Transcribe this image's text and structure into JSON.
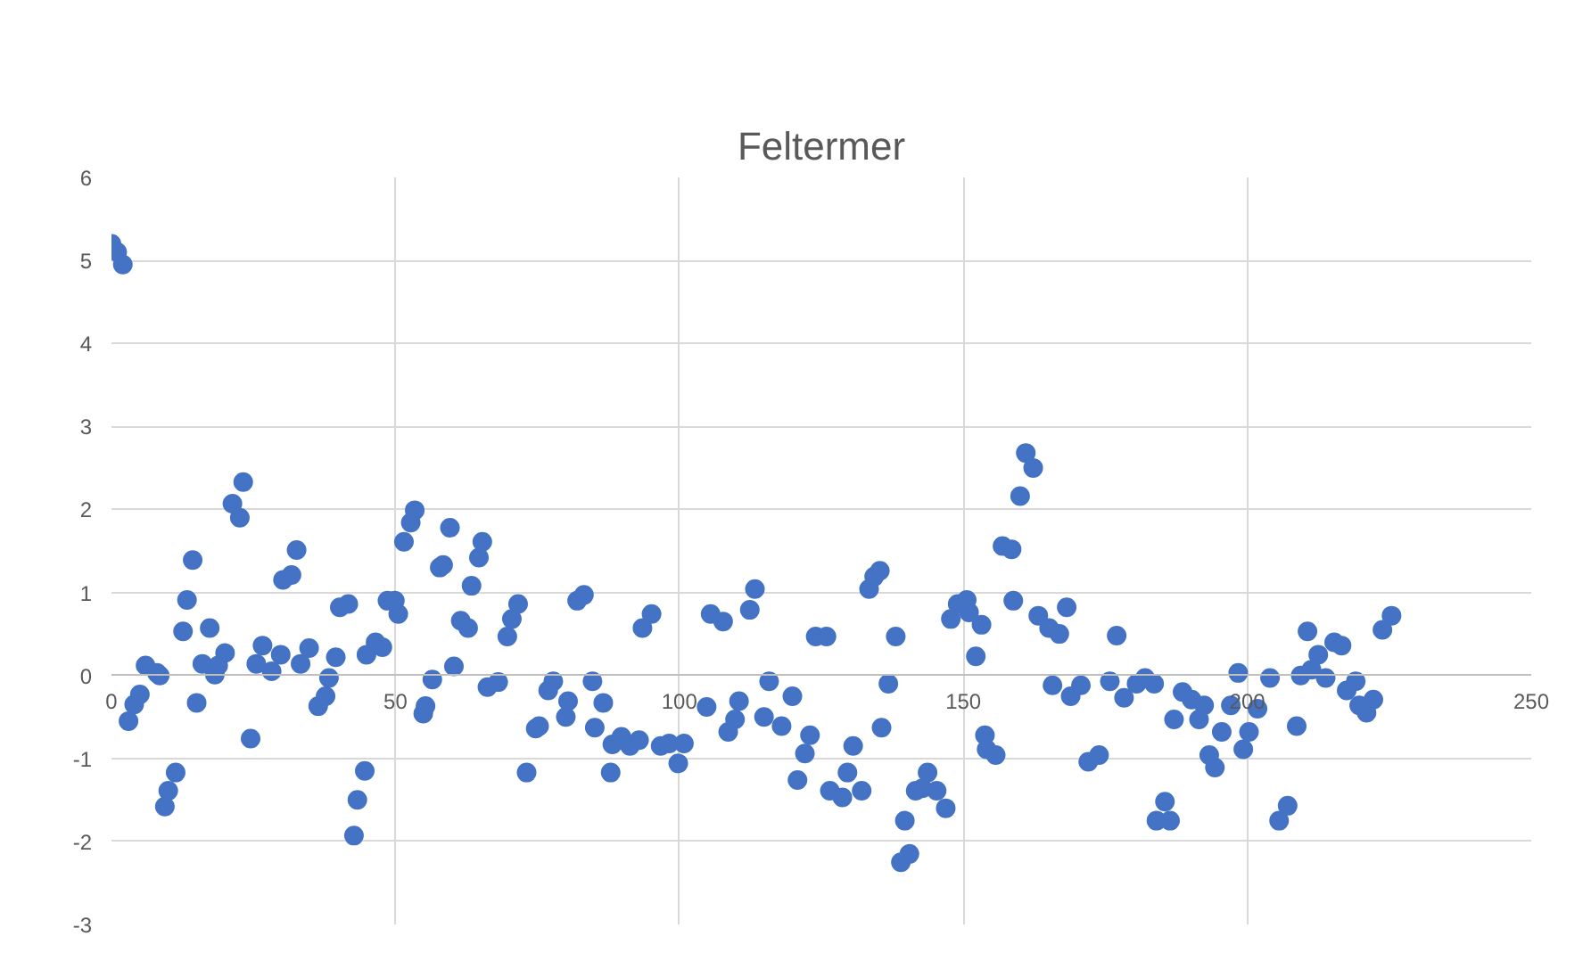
{
  "chart_data": {
    "type": "scatter",
    "title": "Feltermer",
    "color": "#4472c4",
    "marker": "circle",
    "grid": true,
    "xlim": [
      0,
      250
    ],
    "xticks": [
      0,
      50,
      100,
      150,
      200,
      250
    ],
    "ylim": [
      -3,
      6
    ],
    "yticks": [
      -3,
      -2,
      -1,
      0,
      1,
      2,
      3,
      4,
      5,
      6
    ],
    "x": [
      0,
      1,
      2,
      3,
      4,
      5,
      6,
      8,
      8.5,
      9.4,
      10,
      11.3,
      12.6,
      13.3,
      14.3,
      15,
      16,
      17.3,
      18.2,
      18.8,
      20,
      21.3,
      22.6,
      23.2,
      24.5,
      25.5,
      26.6,
      28.2,
      29.8,
      30.2,
      31.7,
      32.6,
      33.3,
      34.8,
      36.4,
      37.7,
      38.3,
      39.5,
      40.2,
      41.7,
      42.7,
      43.3,
      44.6,
      44.9,
      46.5,
      47.7,
      48.6,
      49.9,
      50.5,
      51.5,
      52.7,
      53.4,
      54.9,
      55.3,
      56.5,
      57.8,
      58.4,
      59.6,
      60.3,
      61.5,
      62.8,
      63.4,
      64.7,
      65.3,
      66.2,
      68.1,
      69.7,
      70.5,
      71.6,
      73.1,
      74.7,
      75.3,
      76.9,
      77.8,
      80,
      80.4,
      82,
      83.2,
      84.7,
      85.1,
      86.6,
      87.9,
      88.2,
      89.8,
      91.3,
      92.9,
      93.5,
      95.1,
      96.7,
      98.2,
      99.8,
      100.8,
      104.8,
      105.5,
      107.7,
      108.6,
      109.8,
      110.5,
      112.4,
      113.3,
      114.9,
      115.8,
      118,
      119.9,
      120.8,
      122.1,
      123,
      124,
      125.9,
      126.5,
      128.7,
      129.6,
      130.6,
      132.1,
      133.4,
      134.3,
      135.3,
      135.6,
      136.8,
      138.1,
      139,
      139.7,
      140.5,
      141.6,
      142.8,
      143.7,
      145.3,
      146.9,
      147.8,
      149,
      150.6,
      151,
      152.2,
      153.2,
      153.8,
      154.1,
      155.7,
      156.9,
      158.5,
      158.8,
      160,
      161,
      162.3,
      163.2,
      165.1,
      165.7,
      166.9,
      168.2,
      168.9,
      170.7,
      172,
      173.9,
      175.8,
      177,
      178.3,
      180.5,
      182,
      183.6,
      184,
      185.5,
      186.4,
      187.1,
      188.6,
      190.2,
      191.5,
      192.4,
      193.3,
      194.3,
      195.5,
      197.1,
      198.4,
      199.3,
      200.3,
      201.8,
      204,
      205.6,
      207.1,
      208.7,
      209.4,
      210.6,
      211.3,
      212.5,
      213.8,
      215.3,
      216.6,
      217.5,
      219.1,
      219.7,
      221,
      222.2,
      223.8,
      225.4
    ],
    "values": [
      5.2,
      5.1,
      4.95,
      -0.55,
      -0.35,
      -0.23,
      0.12,
      0.03,
      0.0,
      -1.58,
      -1.39,
      -1.17,
      0.53,
      0.91,
      1.39,
      -0.33,
      0.14,
      0.57,
      0.01,
      0.12,
      0.27,
      2.07,
      1.9,
      2.33,
      -0.76,
      0.14,
      0.36,
      0.05,
      0.25,
      1.15,
      1.21,
      1.51,
      0.14,
      0.33,
      -0.37,
      -0.25,
      -0.03,
      0.22,
      0.82,
      0.86,
      -1.93,
      -1.5,
      -1.15,
      0.25,
      0.4,
      0.34,
      0.9,
      0.9,
      0.74,
      1.61,
      1.84,
      1.99,
      -0.46,
      -0.37,
      -0.05,
      1.3,
      1.33,
      1.78,
      0.11,
      0.66,
      0.57,
      1.08,
      1.42,
      1.61,
      -0.14,
      -0.08,
      0.47,
      0.68,
      0.86,
      -1.17,
      -0.64,
      -0.61,
      -0.18,
      -0.07,
      -0.5,
      -0.31,
      0.9,
      0.97,
      -0.07,
      -0.63,
      -0.33,
      -1.17,
      -0.83,
      -0.74,
      -0.85,
      -0.78,
      0.57,
      0.74,
      -0.85,
      -0.82,
      -1.06,
      -0.82,
      -0.38,
      0.74,
      0.65,
      -0.68,
      -0.53,
      -0.31,
      0.79,
      1.04,
      -0.5,
      -0.07,
      -0.61,
      -0.25,
      -1.26,
      -0.94,
      -0.72,
      0.47,
      0.47,
      -1.39,
      -1.47,
      -1.17,
      -0.85,
      -1.39,
      1.04,
      1.19,
      1.26,
      -0.63,
      -0.1,
      0.47,
      -2.25,
      -1.75,
      -2.15,
      -1.39,
      -1.36,
      -1.17,
      -1.39,
      -1.6,
      0.68,
      0.86,
      0.91,
      0.76,
      0.23,
      0.61,
      -0.72,
      -0.89,
      -0.96,
      1.56,
      1.52,
      0.9,
      2.16,
      2.68,
      2.5,
      0.72,
      0.57,
      -0.12,
      0.5,
      0.82,
      -0.25,
      -0.12,
      -1.04,
      -0.96,
      -0.07,
      0.48,
      -0.27,
      -0.1,
      -0.03,
      -0.1,
      -1.75,
      -1.52,
      -1.75,
      -0.53,
      -0.2,
      -0.29,
      -0.53,
      -0.36,
      -0.96,
      -1.11,
      -0.68,
      -0.36,
      0.03,
      -0.89,
      -0.68,
      -0.4,
      -0.03,
      -1.75,
      -1.57,
      -0.61,
      0,
      0.53,
      0.07,
      0.25,
      -0.03,
      0.4,
      0.36,
      -0.18,
      -0.07,
      -0.36,
      -0.45,
      -0.29,
      0.55,
      0.72
    ]
  }
}
